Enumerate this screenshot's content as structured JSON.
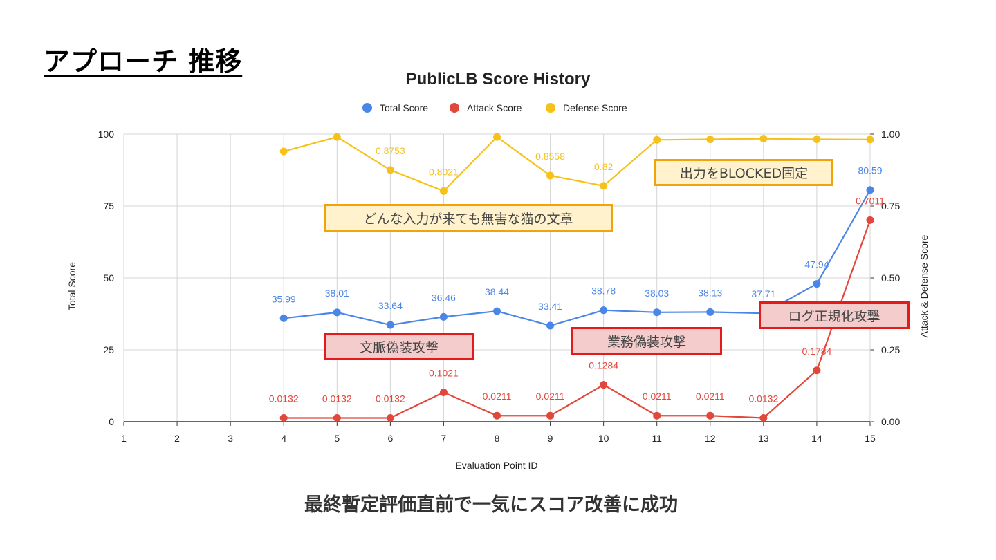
{
  "slide": {
    "title": "アプローチ 推移",
    "footer": "最終暫定評価直前で一気にスコア改善に成功"
  },
  "callouts": {
    "defense_blocked": "出力をBLOCKED固定",
    "defense_cat": "どんな入力が来ても無害な猫の文章",
    "attack_context": "文脈偽装攻撃",
    "attack_business": "業務偽装攻撃",
    "attack_log": "ログ正規化攻撃"
  },
  "colors": {
    "total": "#4a86e8",
    "attack": "#e2473c",
    "defense": "#f6c21a",
    "callout_defense_bg": "#fff2cc",
    "callout_defense_border": "#f0a30a",
    "callout_attack_bg": "#f4cccc",
    "callout_attack_border": "#e51a1a"
  },
  "chart_data": {
    "type": "line",
    "title": "PublicLB Score History",
    "xlabel": "Evaluation Point ID",
    "ylabel": "Total Score",
    "y2label": "Attack & Defense Score",
    "x": [
      1,
      2,
      3,
      4,
      5,
      6,
      7,
      8,
      9,
      10,
      11,
      12,
      13,
      14,
      15
    ],
    "ylim": [
      0,
      100
    ],
    "yticks": [
      "0",
      "25",
      "50",
      "75",
      "100"
    ],
    "y2lim": [
      0,
      1
    ],
    "y2ticks": [
      "0.00",
      "0.25",
      "0.50",
      "0.75",
      "1.00"
    ],
    "grid": true,
    "legend_position": "top",
    "series": [
      {
        "name": "Total Score",
        "axis": "left",
        "color": "#4a86e8",
        "values": [
          null,
          null,
          null,
          35.99,
          38.01,
          33.64,
          36.46,
          38.44,
          33.41,
          38.78,
          38.03,
          38.13,
          37.71,
          47.94,
          80.59
        ],
        "labels": [
          null,
          null,
          null,
          "35.99",
          "38.01",
          "33.64",
          "36.46",
          "38.44",
          "33.41",
          "38.78",
          "38.03",
          "38.13",
          "37.71",
          "47.94",
          "80.59"
        ]
      },
      {
        "name": "Attack Score",
        "axis": "right",
        "color": "#e2473c",
        "values": [
          null,
          null,
          null,
          0.0132,
          0.0132,
          0.0132,
          0.1021,
          0.0211,
          0.0211,
          0.1284,
          0.0211,
          0.0211,
          0.0132,
          0.1784,
          0.7011
        ],
        "labels": [
          null,
          null,
          null,
          "0.0132",
          "0.0132",
          "0.0132",
          "0.1021",
          "0.0211",
          "0.0211",
          "0.1284",
          "0.0211",
          "0.0211",
          "0.0132",
          "0.1784",
          "0.7011"
        ]
      },
      {
        "name": "Defense Score",
        "axis": "right",
        "color": "#f6c21a",
        "values": [
          null,
          null,
          null,
          0.94,
          0.99,
          0.8753,
          0.8021,
          0.99,
          0.8558,
          0.82,
          0.98,
          0.982,
          0.984,
          0.982,
          0.981
        ],
        "labels": [
          null,
          null,
          null,
          null,
          null,
          "0.8753",
          "0.8021",
          null,
          "0.8558",
          "0.82",
          null,
          null,
          null,
          null,
          null
        ]
      }
    ]
  }
}
